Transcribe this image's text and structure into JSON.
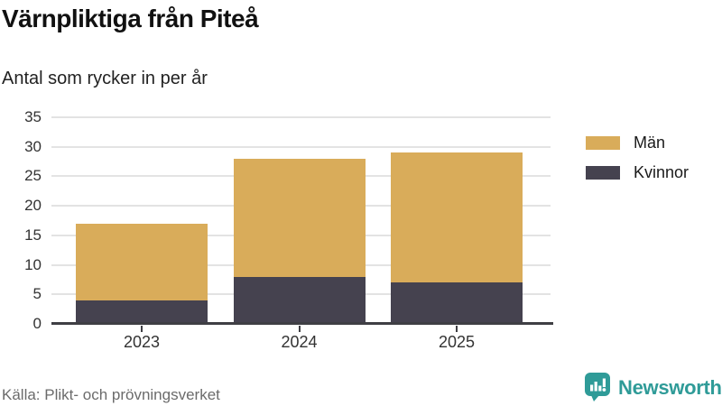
{
  "header": {
    "title": "Värnpliktiga från Piteå",
    "subtitle": "Antal som rycker in per år"
  },
  "chart_data": {
    "type": "bar",
    "stacked": true,
    "title": "Värnpliktiga från Piteå",
    "subtitle": "Antal som rycker in per år",
    "categories": [
      "2023",
      "2024",
      "2025"
    ],
    "series": [
      {
        "name": "Män",
        "color": "#D9AC5A",
        "values": [
          13,
          20,
          22
        ]
      },
      {
        "name": "Kvinnor",
        "color": "#45424F",
        "values": [
          4,
          8,
          7
        ]
      }
    ],
    "stack_order_bottom_to_top": [
      "Kvinnor",
      "Män"
    ],
    "stack_totals": [
      17,
      28,
      29
    ],
    "xlabel": "",
    "ylabel": "",
    "ylim": [
      0,
      35
    ],
    "yticks": [
      0,
      5,
      10,
      15,
      20,
      25,
      30,
      35
    ],
    "grid": true,
    "legend_position": "top-right"
  },
  "footer": {
    "source": "Källa: Plikt- och prövningsverket",
    "brand_name": "Newsworthy",
    "brand_color": "#2F9B98",
    "brand_icon": "bar-chart-speech-bubble-icon"
  },
  "colors": {
    "grid": "#E3E3E3",
    "axis": "#3F3F44",
    "tick_text": "#333333",
    "source_text": "#6B6B6B"
  }
}
